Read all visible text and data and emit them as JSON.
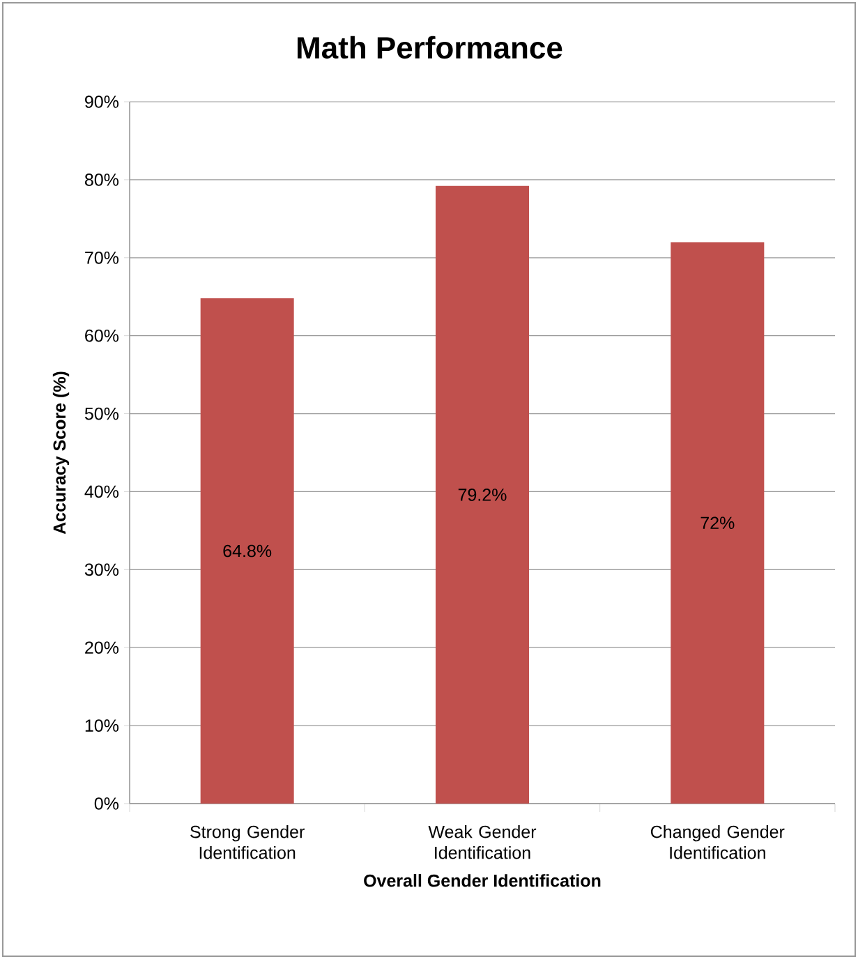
{
  "chart_data": {
    "type": "bar",
    "title": "Math Performance",
    "xlabel": "Overall Gender Identification",
    "ylabel": "Accuracy Score (%)",
    "categories": [
      "Strong Gender Identification",
      "Weak Gender Identification",
      "Changed Gender Identification"
    ],
    "values": [
      64.8,
      79.2,
      72
    ],
    "color": "#c0504d",
    "value_labels": [
      "64.8%",
      "79.2%",
      "72%"
    ],
    "ylim": [
      0,
      90
    ],
    "yticks": [
      {
        "value": 0,
        "label": "0%"
      },
      {
        "value": 10,
        "label": "10%"
      },
      {
        "value": 20,
        "label": "20%"
      },
      {
        "value": 30,
        "label": "30%"
      },
      {
        "value": 40,
        "label": "40%"
      },
      {
        "value": 50,
        "label": "50%"
      },
      {
        "value": 60,
        "label": "60%"
      },
      {
        "value": 70,
        "label": "70%"
      },
      {
        "value": 80,
        "label": "80%"
      },
      {
        "value": 90,
        "label": "90%"
      }
    ],
    "grid": "y"
  }
}
